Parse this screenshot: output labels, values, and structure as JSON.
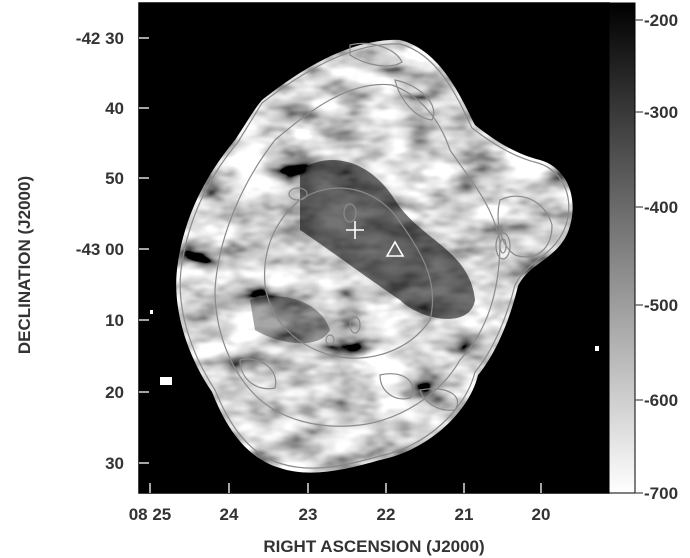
{
  "chart_data": {
    "type": "heatmap",
    "title": "",
    "xlabel": "RIGHT ASCENSION (J2000)",
    "ylabel": "DECLINATION (J2000)",
    "x_ticks": [
      "08 25",
      "24",
      "23",
      "22",
      "21",
      "20"
    ],
    "y_ticks": [
      "-42 30",
      "40",
      "50",
      "-43 00",
      "10",
      "20",
      "30"
    ],
    "colorbar": {
      "ticks": [
        "-200",
        "-300",
        "-400",
        "-500",
        "-600",
        "-700"
      ],
      "range": [
        -700,
        -200
      ],
      "colormap": "grayscale (white = -700, black = -200)"
    },
    "markers": [
      {
        "symbol": "cross",
        "ra": "08 22 23",
        "dec": "-42 57.2"
      },
      {
        "symbol": "triangle",
        "ra": "08 21 55",
        "dec": "-42 59.3"
      }
    ],
    "grid": false,
    "colors": {
      "frame": "#000000",
      "contour": "#8a8a8a",
      "marker": "#ffffff"
    }
  }
}
